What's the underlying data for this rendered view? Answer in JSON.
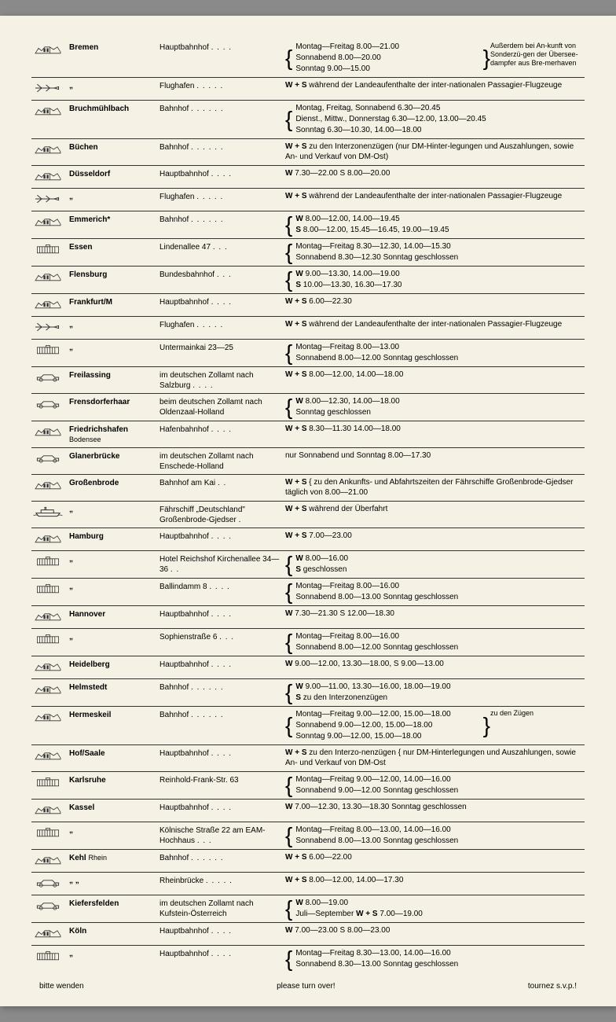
{
  "entries": [
    {
      "icon": "building",
      "city": "Bremen",
      "location": "Hauptbahnhof",
      "dots": ". . . .",
      "brace": "{",
      "hours": [
        "Montag—Freitag  8.00—21.00",
        "Sonnabend          8.00—20.00",
        "Sonntag              9.00—15.00"
      ],
      "brace_r": "}",
      "side_note": "Außerdem bei An-kunft von Sonderzü-gen der Übersee-dampfer aus Bre-merhaven"
    },
    {
      "icon": "plane",
      "city": "„",
      "location": "Flughafen",
      "dots": ". . . . .",
      "hours": [
        "W + S während der Landeaufenthalte der inter-nationalen Passagier-Flugzeuge"
      ]
    },
    {
      "icon": "building",
      "city": "Bruchmühlbach",
      "location": "Bahnhof",
      "dots": ". . . . . .",
      "brace": "{",
      "hours": [
        "Montag, Freitag, Sonnabend  6.30—20.45",
        "Dienst., Mittw., Donnerstag  6.30—12.00, 13.00—20.45",
        "Sonntag                                6.30—10.30, 14.00—18.00"
      ]
    },
    {
      "icon": "building",
      "city": "Büchen",
      "location": "Bahnhof",
      "dots": ". . . . . .",
      "hours": [
        "W + S zu den Interzonenzügen (nur DM-Hinter-legungen und Auszahlungen, sowie An- und Verkauf von DM-Ost)"
      ]
    },
    {
      "icon": "building",
      "city": "Düsseldorf",
      "location": "Hauptbahnhof",
      "dots": ". . . .",
      "hours": [
        "W      7.30—22.00            S  8.00—20.00"
      ]
    },
    {
      "icon": "plane",
      "city": "„",
      "location": "Flughafen",
      "dots": ". . . . .",
      "hours": [
        "W + S während der Landeaufenthalte der inter-nationalen Passagier-Flugzeuge"
      ]
    },
    {
      "icon": "building",
      "city": "Emmerich*",
      "location": "Bahnhof",
      "dots": ". . . . . .",
      "brace": "{",
      "hours": [
        "W    8.00—12.00, 14.00—19.45",
        "S     8.00—12.00, 15.45—16.45, 19.00—19.45"
      ]
    },
    {
      "icon": "hall",
      "city": "Essen",
      "location": "Lindenallee 47",
      "dots": ". . .",
      "brace": "{",
      "hours": [
        "Montag—Freitag  8.30—12.30, 14.00—15.30",
        "Sonnabend          8.30—12.30    Sonntag geschlossen"
      ]
    },
    {
      "icon": "building",
      "city": "Flensburg",
      "location": "Bundesbahnhof",
      "dots": ". . .",
      "brace": "{",
      "hours": [
        "W    9.00—13.30, 14.00—19.00",
        "S   10.00—13.30, 16.30—17.30"
      ]
    },
    {
      "icon": "building",
      "city": "Frankfurt/M",
      "location": "Hauptbahnhof",
      "dots": ". . . .",
      "hours": [
        "W + S 6.00—22.30"
      ]
    },
    {
      "icon": "plane",
      "city": "„",
      "location": "Flughafen",
      "dots": ". . . . .",
      "hours": [
        "W + S während der Landeaufenthalte der inter-nationalen Passagier-Flugzeuge"
      ]
    },
    {
      "icon": "hall",
      "city": "„",
      "location": "Untermainkai 23—25",
      "dots": "",
      "brace": "{",
      "hours": [
        "Montag—Freitag  8.00—13.00",
        "Sonnabend          8.00—12.00    Sonntag geschlossen"
      ]
    },
    {
      "icon": "car",
      "city": "Freilassing",
      "location": "im deutschen Zollamt nach Salzburg",
      "dots": ". . . .",
      "hours": [
        "W + S 8.00—12.00,   14.00—18.00"
      ]
    },
    {
      "icon": "car",
      "city": "Frensdorferhaar",
      "location": "beim deutschen Zollamt nach Oldenzaal-Holland",
      "dots": "",
      "brace": "{",
      "hours": [
        "W    8.00—12.30, 14.00—18.00",
        "Sonntag geschlossen"
      ]
    },
    {
      "icon": "building",
      "city": "Friedrichshafen",
      "city_sub": "Bodensee",
      "location": "Hafenbahnhof",
      "dots": ". . . .",
      "hours": [
        "W + S 8.30—11.30   14.00—18.00"
      ]
    },
    {
      "icon": "car",
      "city": "Glanerbrücke",
      "location": "im deutschen Zollamt nach Enschede-Holland",
      "dots": "",
      "hours": [
        "nur Sonnabend und Sonntag 8.00—17.30"
      ]
    },
    {
      "icon": "building",
      "city": "Großenbrode",
      "location": "Bahnhof am Kai",
      "dots": ". .",
      "hours": [
        "W + S { zu den Ankunfts- und Abfahrtszeiten der Fährschiffe Großenbrode-Gjedser täglich von 8.00—21.00"
      ]
    },
    {
      "icon": "ship",
      "city": "„",
      "location": "Fährschiff „Deutschland\" Großenbrode-Gjedser",
      "dots": ".",
      "hours": [
        "W + S während der Überfahrt"
      ]
    },
    {
      "icon": "building",
      "city": "Hamburg",
      "location": "Hauptbahnhof",
      "dots": ". . . .",
      "hours": [
        "W + S 7.00—23.00"
      ]
    },
    {
      "icon": "hall",
      "city": "„",
      "location": "Hotel Reichshof Kirchenallee 34—36",
      "dots": ". .",
      "brace": "{",
      "hours": [
        "W    8.00—16.00",
        "S     geschlossen"
      ]
    },
    {
      "icon": "hall",
      "city": "„",
      "location": "Ballindamm 8",
      "dots": ". . . .",
      "brace": "{",
      "hours": [
        "Montag—Freitag  8.00—16.00",
        "Sonnabend          8.00—13.00    Sonntag geschlossen"
      ]
    },
    {
      "icon": "building",
      "city": "Hannover",
      "location": "Hauptbahnhof",
      "dots": ". . . .",
      "hours": [
        "W      7.30—21.30            S  12.00—18.30"
      ]
    },
    {
      "icon": "hall",
      "city": "„",
      "location": "Sophienstraße 6",
      "dots": ". . .",
      "brace": "{",
      "hours": [
        "Montag—Freitag  8.00—16.00",
        "Sonnabend          8.00—12.00    Sonntag geschlossen"
      ]
    },
    {
      "icon": "building",
      "city": "Heidelberg",
      "location": "Hauptbahnhof",
      "dots": ". . . .",
      "hours": [
        "W  9.00—12.00, 13.30—18.00, S  9.00—13.00"
      ]
    },
    {
      "icon": "building",
      "city": "Helmstedt",
      "location": "Bahnhof",
      "dots": ". . . . . .",
      "brace": "{",
      "hours": [
        "W    9.00—11.00, 13.30—16.00, 18.00—19.00",
        "S     zu den Interzonenzügen"
      ]
    },
    {
      "icon": "building",
      "city": "Hermeskeil",
      "location": "Bahnhof",
      "dots": ". . . . . .",
      "brace": "{",
      "hours": [
        "Montag—Freitag  9.00—12.00, 15.00—18.00",
        "Sonnabend          9.00—12.00, 15.00—18.00",
        "Sonntag              9.00—12.00, 15.00—18.00"
      ],
      "brace_r": "}",
      "side_note": "zu den Zügen"
    },
    {
      "icon": "building",
      "city": "Hof/Saale",
      "location": "Hauptbahnhof",
      "dots": ". . . .",
      "hours": [
        "W + S zu den Interzo-nenzügen { nur DM-Hinterlegungen und Auszahlungen, sowie An- und Verkauf von DM-Ost"
      ]
    },
    {
      "icon": "hall",
      "city": "Karlsruhe",
      "location": "Reinhold-Frank-Str. 63",
      "dots": "",
      "brace": "{",
      "hours": [
        "Montag—Freitag  9.00—12.00,   14.00—16.00",
        "Sonnabend          9.00—12.00    Sonntag geschlossen"
      ]
    },
    {
      "icon": "building",
      "city": "Kassel",
      "location": "Hauptbahnhof",
      "dots": ". . . .",
      "hours": [
        "W   7.00—12.30, 13.30—18.30    Sonntag geschlossen"
      ]
    },
    {
      "icon": "hall",
      "city": "„",
      "location": "Kölnische Straße 22 am EAM-Hochhaus",
      "dots": ". . .",
      "brace": "{",
      "hours": [
        "Montag—Freitag  8.00—13.00,   14.00—16.00",
        "Sonnabend          8.00—13.00    Sonntag geschlossen"
      ]
    },
    {
      "icon": "building",
      "city": "Kehl",
      "city_sub2": "Rhein",
      "location": "Bahnhof",
      "dots": ". . . . . .",
      "hours": [
        "W + S 6.00—22.00"
      ]
    },
    {
      "icon": "car",
      "city": "„    „",
      "location": "Rheinbrücke",
      "dots": ". . . . .",
      "hours": [
        "W + S 8.00—12.00, 14.00—17.30"
      ]
    },
    {
      "icon": "car",
      "city": "Kiefersfelden",
      "location": "im deutschen Zollamt nach Kufstein-Österreich",
      "dots": "",
      "brace": "{",
      "hours": [
        "W    8.00—19.00",
        "Juli—September W + S  7.00—19.00"
      ]
    },
    {
      "icon": "building",
      "city": "Köln",
      "location": "Hauptbahnhof",
      "dots": ". . . .",
      "hours": [
        "W      7.00—23.00            S  8.00—23.00"
      ]
    },
    {
      "icon": "hall",
      "city": "„",
      "location": "Hauptbahnhof",
      "dots": ". . . .",
      "brace": "{",
      "hours": [
        "Montag—Freitag  8.30—13.00,   14.00—16.00",
        "Sonnabend          8.30—13.00    Sonntag geschlossen"
      ]
    }
  ],
  "footer": {
    "left": "bitte wenden",
    "center": "please turn over!",
    "right": "tournez s.v.p.!"
  }
}
